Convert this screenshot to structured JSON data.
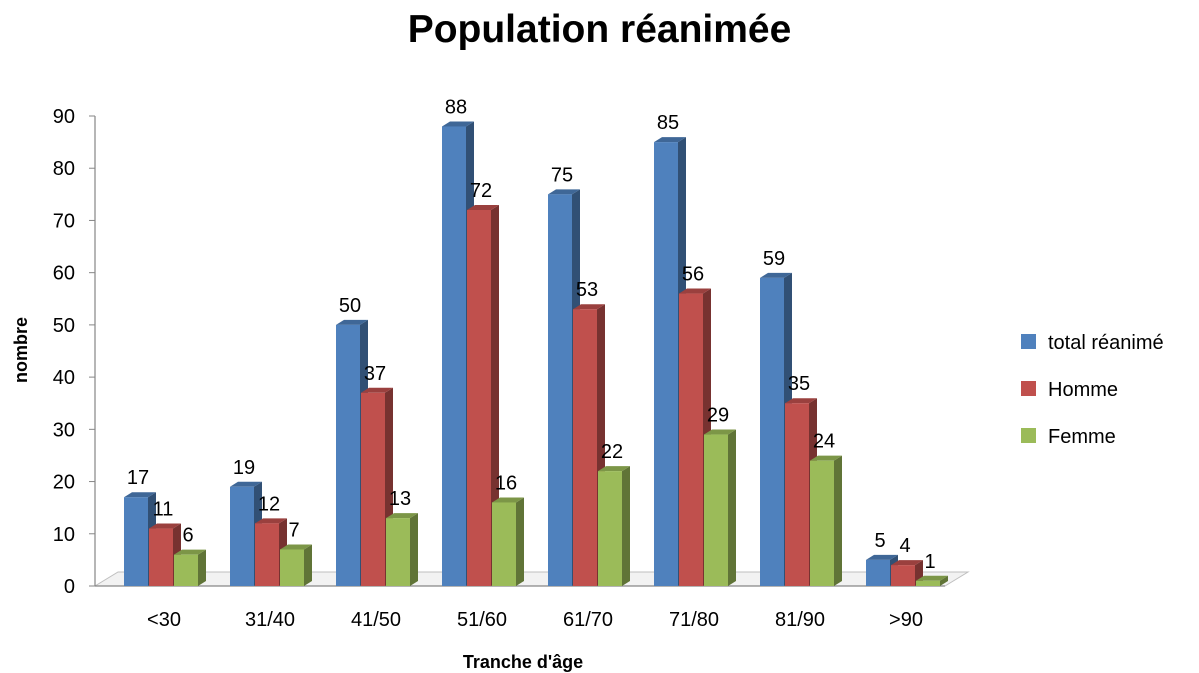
{
  "chart_data": {
    "type": "bar",
    "title": "Population réanimée",
    "xlabel": "Tranche d'âge",
    "ylabel": "nombre",
    "categories": [
      "<30",
      "31/40",
      "41/50",
      "51/60",
      "61/70",
      "71/80",
      "81/90",
      ">90"
    ],
    "series": [
      {
        "name": "total réanimé",
        "values": [
          17,
          19,
          50,
          88,
          75,
          85,
          59,
          5
        ],
        "color": "#4F81BD"
      },
      {
        "name": "Homme",
        "values": [
          11,
          12,
          37,
          72,
          53,
          56,
          35,
          4
        ],
        "color": "#C0504D"
      },
      {
        "name": "Femme",
        "values": [
          6,
          7,
          13,
          16,
          22,
          29,
          24,
          1
        ],
        "color": "#9BBB59"
      }
    ],
    "ylim": [
      0,
      90
    ],
    "yticks": [
      0,
      10,
      20,
      30,
      40,
      50,
      60,
      70,
      80,
      90
    ],
    "legend_position": "right",
    "style": "3d-clustered-column",
    "grid": false
  }
}
